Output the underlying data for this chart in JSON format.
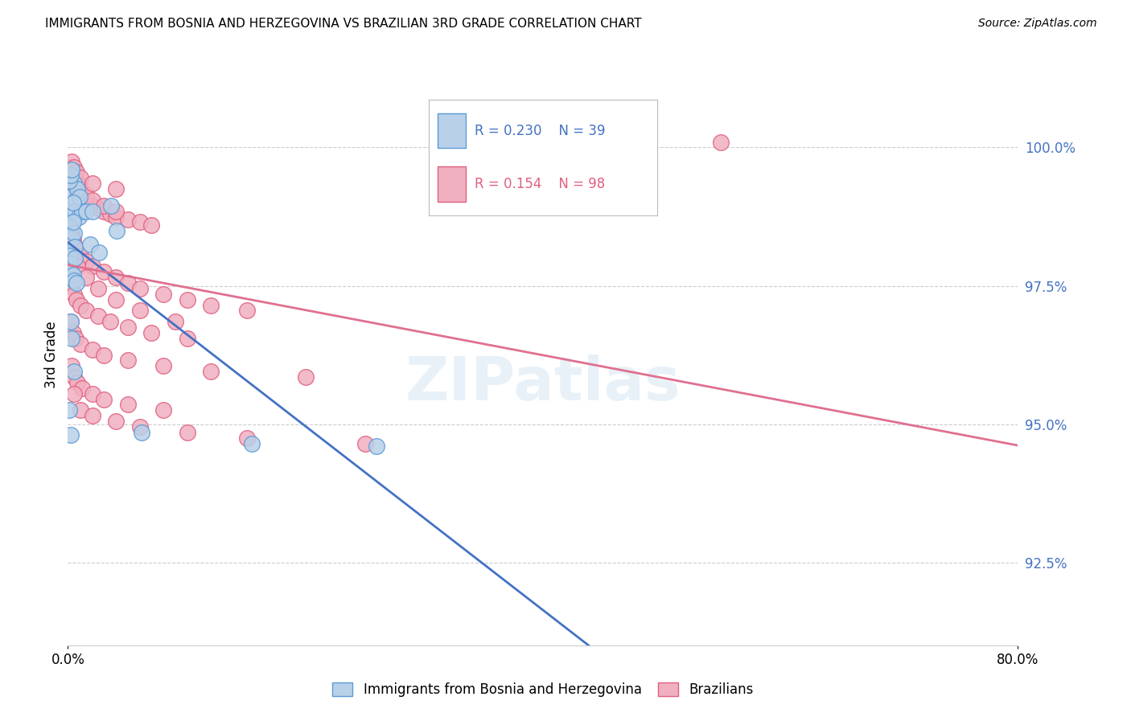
{
  "title": "IMMIGRANTS FROM BOSNIA AND HERZEGOVINA VS BRAZILIAN 3RD GRADE CORRELATION CHART",
  "source": "Source: ZipAtlas.com",
  "ylabel_label": "3rd Grade",
  "y_ticks": [
    92.5,
    95.0,
    97.5,
    100.0
  ],
  "y_tick_labels": [
    "92.5%",
    "95.0%",
    "97.5%",
    "100.0%"
  ],
  "xlim": [
    0.0,
    80.0
  ],
  "ylim": [
    91.0,
    101.5
  ],
  "legend1_R": "0.230",
  "legend1_N": "39",
  "legend2_R": "0.154",
  "legend2_N": "98",
  "bosnia_fill": "#b8d0e8",
  "brazilian_fill": "#f0b0c0",
  "bosnia_edge": "#5b9bd5",
  "brazilian_edge": "#e06080",
  "bosnia_line_color": "#4472c4",
  "brazilian_line_color": "#e07090",
  "tick_color": "#4472c4",
  "bosnia_points": [
    [
      0.25,
      99.1
    ],
    [
      0.5,
      99.35
    ],
    [
      0.65,
      99.05
    ],
    [
      0.8,
      99.25
    ],
    [
      0.4,
      98.8
    ],
    [
      0.6,
      98.85
    ],
    [
      1.0,
      99.1
    ],
    [
      0.9,
      98.75
    ],
    [
      1.2,
      98.85
    ],
    [
      0.2,
      98.55
    ],
    [
      0.3,
      98.35
    ],
    [
      0.5,
      98.45
    ],
    [
      0.42,
      98.65
    ],
    [
      0.6,
      98.2
    ],
    [
      1.5,
      98.85
    ],
    [
      2.1,
      98.85
    ],
    [
      3.6,
      98.95
    ],
    [
      0.1,
      98.05
    ],
    [
      0.2,
      97.9
    ],
    [
      0.28,
      97.75
    ],
    [
      0.42,
      97.7
    ],
    [
      0.52,
      97.6
    ],
    [
      0.7,
      97.55
    ],
    [
      1.85,
      98.25
    ],
    [
      0.25,
      96.85
    ],
    [
      0.32,
      96.55
    ],
    [
      4.1,
      98.5
    ],
    [
      0.12,
      95.25
    ],
    [
      0.22,
      94.8
    ],
    [
      2.6,
      98.1
    ],
    [
      0.12,
      99.4
    ],
    [
      0.22,
      99.5
    ],
    [
      0.32,
      99.6
    ],
    [
      0.42,
      99.0
    ],
    [
      6.2,
      94.85
    ],
    [
      15.5,
      94.65
    ],
    [
      0.55,
      95.95
    ],
    [
      26.0,
      94.6
    ],
    [
      0.6,
      98.0
    ]
  ],
  "brazilian_points": [
    [
      0.12,
      99.55
    ],
    [
      0.22,
      99.5
    ],
    [
      0.32,
      99.4
    ],
    [
      0.42,
      99.45
    ],
    [
      0.52,
      99.35
    ],
    [
      0.62,
      99.3
    ],
    [
      0.72,
      99.25
    ],
    [
      0.82,
      99.2
    ],
    [
      0.92,
      99.15
    ],
    [
      1.05,
      99.1
    ],
    [
      1.22,
      99.05
    ],
    [
      1.52,
      99.0
    ],
    [
      2.05,
      98.95
    ],
    [
      2.55,
      98.9
    ],
    [
      3.05,
      98.85
    ],
    [
      3.55,
      98.8
    ],
    [
      4.05,
      98.75
    ],
    [
      5.05,
      98.7
    ],
    [
      6.05,
      98.65
    ],
    [
      7.05,
      98.6
    ],
    [
      0.22,
      99.65
    ],
    [
      0.32,
      99.6
    ],
    [
      0.42,
      99.55
    ],
    [
      0.52,
      99.5
    ],
    [
      0.62,
      99.45
    ],
    [
      0.72,
      99.4
    ],
    [
      0.82,
      99.35
    ],
    [
      1.05,
      99.25
    ],
    [
      1.55,
      99.15
    ],
    [
      2.05,
      99.05
    ],
    [
      3.05,
      98.95
    ],
    [
      4.05,
      98.85
    ],
    [
      0.22,
      98.55
    ],
    [
      0.32,
      98.45
    ],
    [
      0.42,
      98.35
    ],
    [
      0.52,
      98.25
    ],
    [
      0.72,
      98.15
    ],
    [
      1.05,
      98.05
    ],
    [
      1.55,
      97.95
    ],
    [
      2.05,
      97.85
    ],
    [
      3.05,
      97.75
    ],
    [
      4.05,
      97.65
    ],
    [
      5.05,
      97.55
    ],
    [
      6.05,
      97.45
    ],
    [
      8.05,
      97.35
    ],
    [
      10.05,
      97.25
    ],
    [
      12.05,
      97.15
    ],
    [
      15.05,
      97.05
    ],
    [
      0.32,
      97.5
    ],
    [
      0.52,
      97.35
    ],
    [
      0.72,
      97.25
    ],
    [
      1.05,
      97.15
    ],
    [
      1.55,
      97.05
    ],
    [
      2.55,
      96.95
    ],
    [
      3.55,
      96.85
    ],
    [
      5.05,
      96.75
    ],
    [
      7.05,
      96.65
    ],
    [
      10.05,
      96.55
    ],
    [
      0.22,
      96.85
    ],
    [
      0.42,
      96.65
    ],
    [
      0.62,
      96.55
    ],
    [
      1.05,
      96.45
    ],
    [
      2.05,
      96.35
    ],
    [
      3.05,
      96.25
    ],
    [
      5.05,
      96.15
    ],
    [
      8.05,
      96.05
    ],
    [
      12.05,
      95.95
    ],
    [
      20.05,
      95.85
    ],
    [
      0.32,
      96.05
    ],
    [
      0.52,
      95.85
    ],
    [
      0.82,
      95.75
    ],
    [
      1.22,
      95.65
    ],
    [
      2.05,
      95.55
    ],
    [
      3.05,
      95.45
    ],
    [
      5.05,
      95.35
    ],
    [
      8.05,
      95.25
    ],
    [
      0.52,
      95.55
    ],
    [
      1.05,
      95.25
    ],
    [
      2.05,
      95.15
    ],
    [
      4.05,
      95.05
    ],
    [
      6.05,
      94.95
    ],
    [
      10.05,
      94.85
    ],
    [
      15.05,
      94.75
    ],
    [
      25.05,
      94.65
    ],
    [
      0.32,
      99.75
    ],
    [
      0.52,
      99.65
    ],
    [
      0.72,
      99.55
    ],
    [
      1.05,
      99.45
    ],
    [
      2.05,
      99.35
    ],
    [
      4.05,
      99.25
    ],
    [
      55.0,
      100.1
    ],
    [
      0.82,
      97.85
    ],
    [
      1.55,
      97.65
    ],
    [
      2.55,
      97.45
    ],
    [
      4.05,
      97.25
    ],
    [
      6.05,
      97.05
    ],
    [
      9.05,
      96.85
    ],
    [
      0.42,
      98.75
    ]
  ]
}
